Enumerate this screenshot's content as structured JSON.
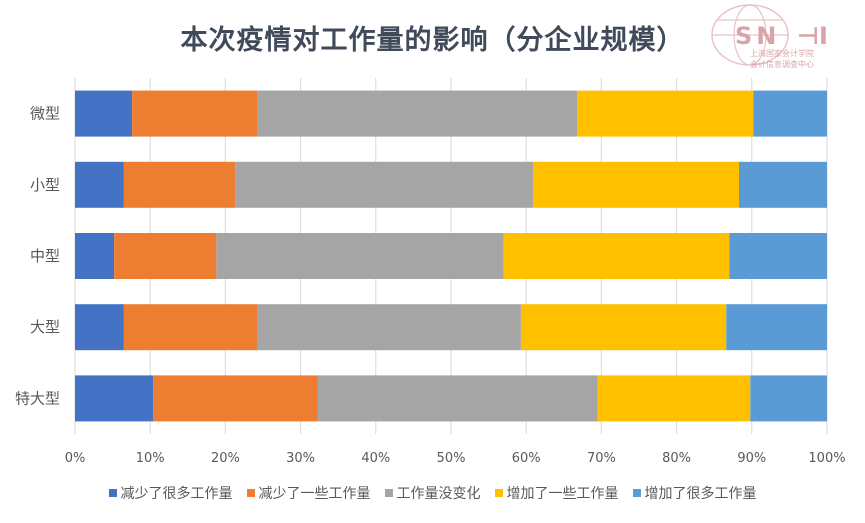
{
  "logo": {
    "text": "SNAI",
    "line1": "上海国家会计学院",
    "line2": "会计信息调查中心"
  },
  "chart_data": {
    "type": "bar",
    "orientation": "horizontal-stacked-100",
    "title": "本次疫情对工作量的影响（分企业规模）",
    "categories": [
      "微型",
      "小型",
      "中型",
      "大型",
      "特大型"
    ],
    "series": [
      {
        "name": "减少了很多工作量",
        "color": "#4472c4",
        "values": [
          7.6,
          6.5,
          5.2,
          6.5,
          10.4
        ]
      },
      {
        "name": "减少了一些工作量",
        "color": "#ed7d31",
        "values": [
          16.7,
          14.8,
          13.6,
          17.7,
          21.9
        ]
      },
      {
        "name": "工作量没变化",
        "color": "#a5a5a5",
        "values": [
          42.5,
          39.6,
          38.2,
          35.1,
          37.2
        ]
      },
      {
        "name": "增加了一些工作量",
        "color": "#ffc000",
        "values": [
          23.4,
          27.4,
          30.0,
          27.3,
          20.3
        ]
      },
      {
        "name": "增加了很多工作量",
        "color": "#5b9bd5",
        "values": [
          9.8,
          11.7,
          13.0,
          13.4,
          10.2
        ]
      }
    ],
    "xticks": [
      "0%",
      "10%",
      "20%",
      "30%",
      "40%",
      "50%",
      "60%",
      "70%",
      "80%",
      "90%",
      "100%"
    ],
    "xlim": [
      0,
      100
    ],
    "grid": true,
    "legend": "bottom"
  }
}
